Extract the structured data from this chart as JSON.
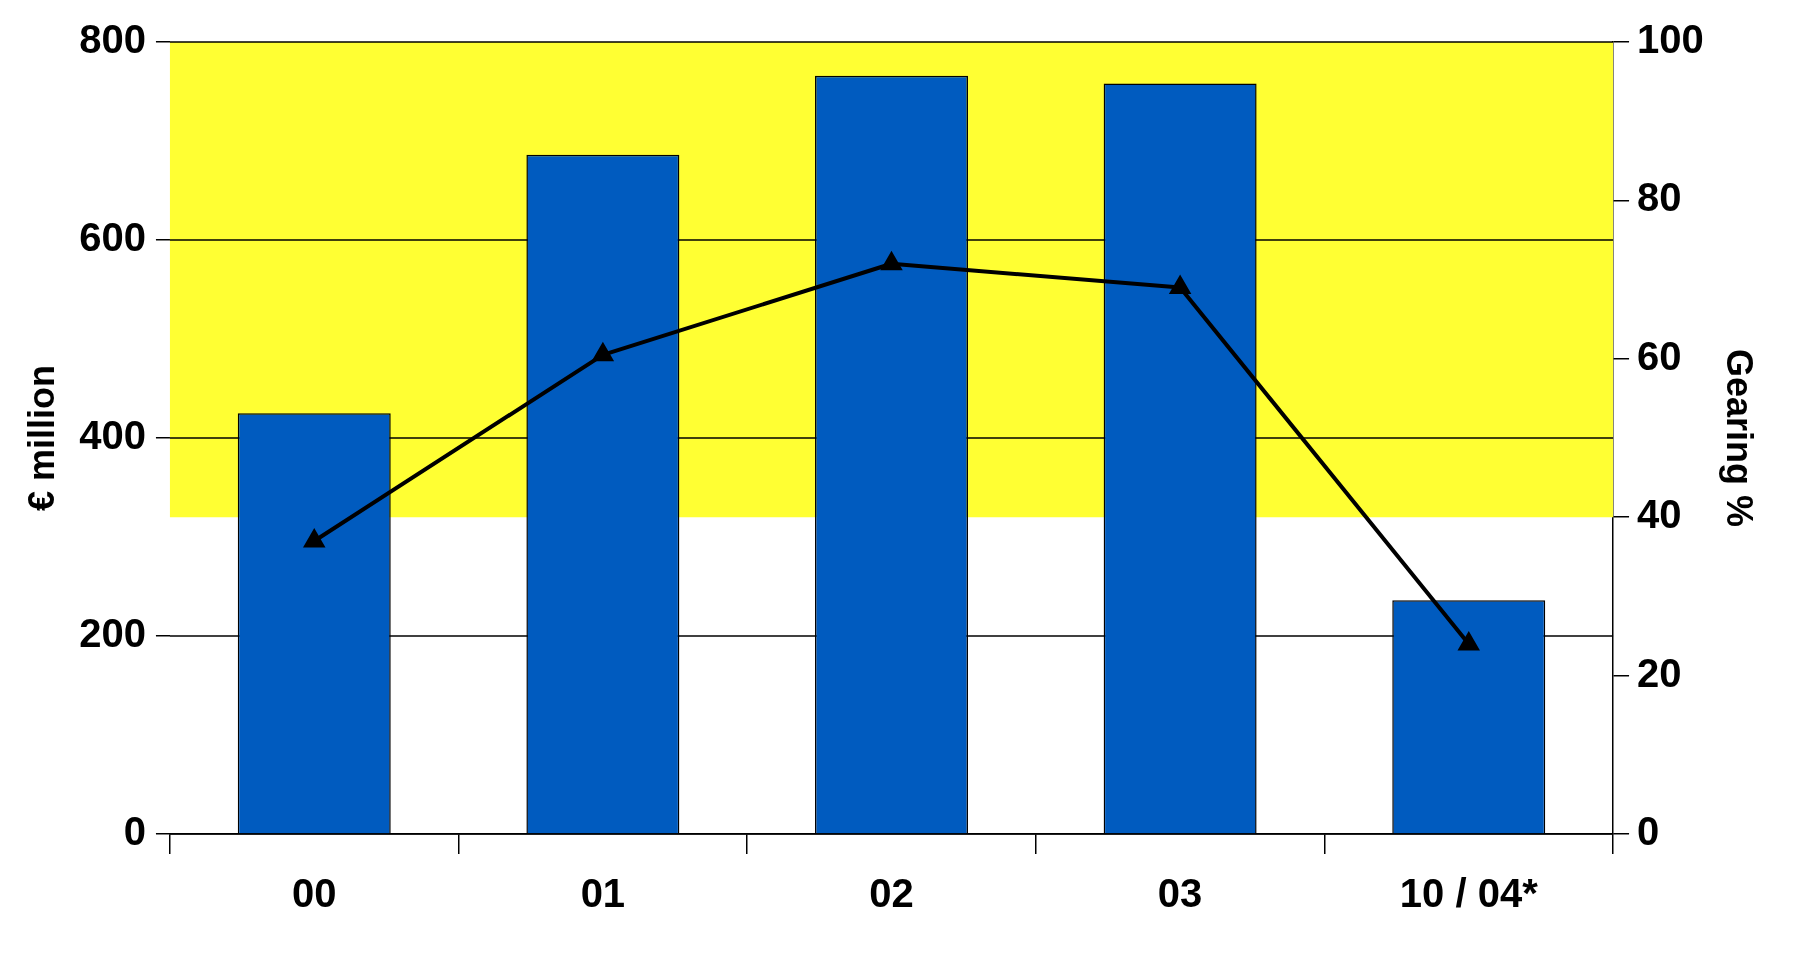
{
  "chart_data": {
    "type": "bar",
    "categories": [
      "00",
      "01",
      "02",
      "03",
      "10 / 04*"
    ],
    "series": [
      {
        "color": "#005bbf",
        "values": [
          425,
          686,
          766,
          758,
          236
        ]
      },
      {
        "type": "line",
        "axis": "y2",
        "color": "#000000",
        "values": [
          37,
          60.5,
          72,
          69,
          24
        ]
      }
    ],
    "ylabel": "€ million",
    "y2label": "Gearing %",
    "ylim": [
      0,
      800
    ],
    "yticks": [
      0,
      200,
      400,
      600,
      800
    ],
    "y2lim": [
      0,
      100
    ],
    "y2ticks": [
      0,
      20,
      40,
      60,
      80,
      100
    ],
    "bands": [
      {
        "axis": "y",
        "from": 320,
        "to": 800,
        "color": "#ffff33"
      }
    ],
    "grid": "y",
    "legend": false,
    "marker": "triangle",
    "line_style": "solid"
  }
}
